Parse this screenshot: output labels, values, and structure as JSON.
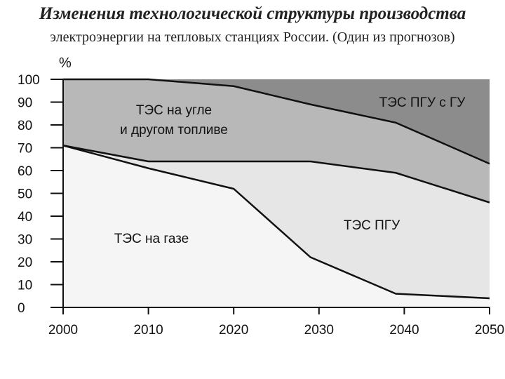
{
  "title": "Изменения технологической структуры производства",
  "subtitle": "электроэнергии на тепловых станциях России. (Один из прогнозов)",
  "chart_data": {
    "type": "area",
    "stacked": true,
    "ylabel": "%",
    "xlim": [
      2000,
      2050
    ],
    "ylim": [
      0,
      100
    ],
    "x": [
      2000,
      2010,
      2020,
      2029,
      2039,
      2050
    ],
    "series": [
      {
        "name": "ТЭС на газе",
        "values": [
          71,
          61,
          52,
          22,
          6,
          4
        ],
        "color": "#f5f5f5"
      },
      {
        "name": "ТЭС ПГУ",
        "values": [
          0,
          3,
          12,
          42,
          53,
          42
        ],
        "color": "#e6e6e6"
      },
      {
        "name": "ТЭС на угле и другом топливе",
        "values": [
          29,
          36,
          33,
          25,
          22,
          17
        ],
        "color": "#b8b8b8"
      },
      {
        "name": "ТЭС ПГУ с ГУ",
        "values": [
          0,
          0,
          3,
          11,
          19,
          37
        ],
        "color": "#8c8c8c"
      }
    ],
    "label_lines": {
      "coal": [
        "ТЭС на угле",
        "и другом топливе"
      ],
      "pgu_gu": "ТЭС ПГУ с ГУ",
      "pgu": "ТЭС ПГУ",
      "gas": "ТЭС на газе"
    },
    "x_ticks": [
      "2000",
      "2010",
      "2020",
      "2030",
      "2040",
      "2050"
    ],
    "y_ticks": [
      "0",
      "10",
      "20",
      "30",
      "40",
      "50",
      "60",
      "70",
      "80",
      "90",
      "100"
    ]
  }
}
